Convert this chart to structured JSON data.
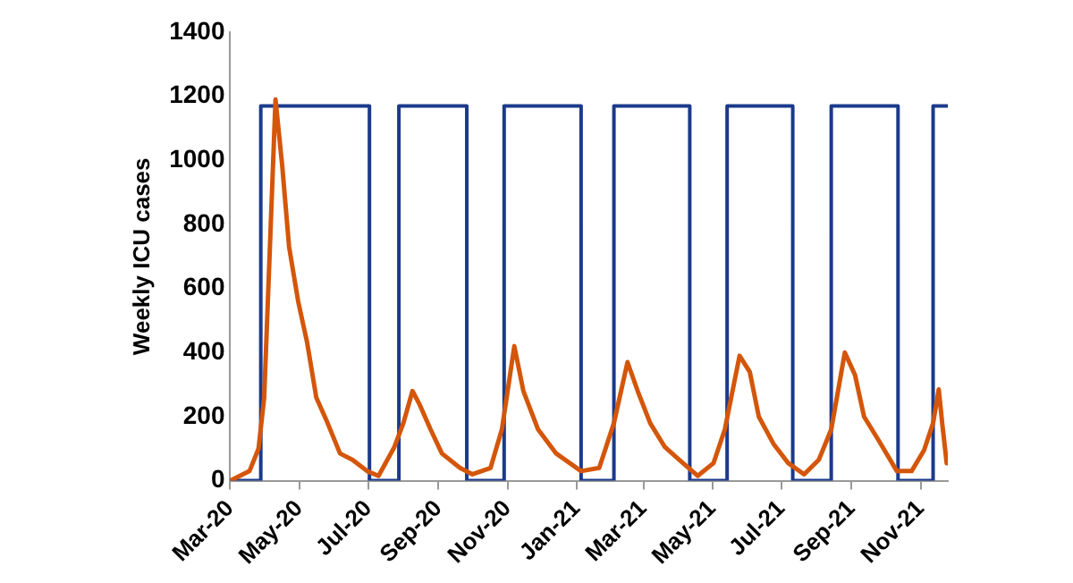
{
  "chart_data": {
    "type": "line",
    "ylabel": "Weekly ICU cases",
    "ylim": [
      0,
      1400
    ],
    "yticks": [
      0,
      200,
      400,
      600,
      800,
      1000,
      1200,
      1400
    ],
    "xlim": [
      "2020-03-01",
      "2021-11-25"
    ],
    "xticks": [
      {
        "value": "2020-03-01",
        "label": "Mar-20"
      },
      {
        "value": "2020-05-01",
        "label": "May-20"
      },
      {
        "value": "2020-07-01",
        "label": "Jul-20"
      },
      {
        "value": "2020-09-01",
        "label": "Sep-20"
      },
      {
        "value": "2020-11-01",
        "label": "Nov-20"
      },
      {
        "value": "2021-01-01",
        "label": "Jan-21"
      },
      {
        "value": "2021-03-01",
        "label": "Mar-21"
      },
      {
        "value": "2021-05-01",
        "label": "May-21"
      },
      {
        "value": "2021-07-01",
        "label": "Jul-21"
      },
      {
        "value": "2021-09-01",
        "label": "Sep-21"
      },
      {
        "value": "2021-11-01",
        "label": "Nov-21"
      }
    ],
    "grid": false,
    "legend": false,
    "marker": "none",
    "series": [
      {
        "type": "step",
        "color": "#1b3a8c",
        "x": [
          "2020-03-01",
          "2020-03-28",
          "2020-07-02",
          "2020-07-28",
          "2020-09-26",
          "2020-10-29",
          "2021-01-05",
          "2021-02-03",
          "2021-04-11",
          "2021-05-14",
          "2021-07-11",
          "2021-08-14",
          "2021-10-12",
          "2021-11-12",
          "2021-11-25"
        ],
        "values": [
          0,
          1170,
          0,
          1170,
          0,
          1170,
          0,
          1170,
          0,
          1170,
          0,
          1170,
          0,
          1170,
          1170
        ]
      },
      {
        "type": "line",
        "color": "#d4560a",
        "x": [
          "2020-03-01",
          "2020-03-18",
          "2020-03-26",
          "2020-03-31",
          "2020-04-10",
          "2020-04-16",
          "2020-04-22",
          "2020-04-30",
          "2020-05-08",
          "2020-05-16",
          "2020-05-26",
          "2020-06-06",
          "2020-06-17",
          "2020-06-30",
          "2020-07-10",
          "2020-07-24",
          "2020-08-01",
          "2020-08-09",
          "2020-08-15",
          "2020-08-25",
          "2020-09-04",
          "2020-09-20",
          "2020-10-01",
          "2020-10-17",
          "2020-10-27",
          "2020-11-07",
          "2020-11-15",
          "2020-11-28",
          "2020-12-14",
          "2021-01-05",
          "2021-01-21",
          "2021-02-03",
          "2021-02-15",
          "2021-02-24",
          "2021-03-07",
          "2021-03-20",
          "2021-04-05",
          "2021-04-18",
          "2021-05-02",
          "2021-05-12",
          "2021-05-25",
          "2021-06-03",
          "2021-06-11",
          "2021-06-24",
          "2021-07-07",
          "2021-07-21",
          "2021-08-03",
          "2021-08-14",
          "2021-08-26",
          "2021-09-04",
          "2021-09-12",
          "2021-09-25",
          "2021-10-11",
          "2021-10-24",
          "2021-11-04",
          "2021-11-12",
          "2021-11-17",
          "2021-11-20",
          "2021-11-24"
        ],
        "values": [
          0,
          30,
          100,
          260,
          1190,
          980,
          730,
          560,
          430,
          260,
          180,
          85,
          65,
          30,
          15,
          105,
          180,
          280,
          240,
          160,
          85,
          40,
          20,
          40,
          160,
          420,
          280,
          160,
          85,
          30,
          40,
          180,
          370,
          280,
          180,
          105,
          55,
          15,
          55,
          160,
          390,
          340,
          200,
          115,
          55,
          20,
          65,
          160,
          400,
          330,
          200,
          125,
          30,
          30,
          95,
          180,
          285,
          180,
          55
        ]
      }
    ]
  }
}
